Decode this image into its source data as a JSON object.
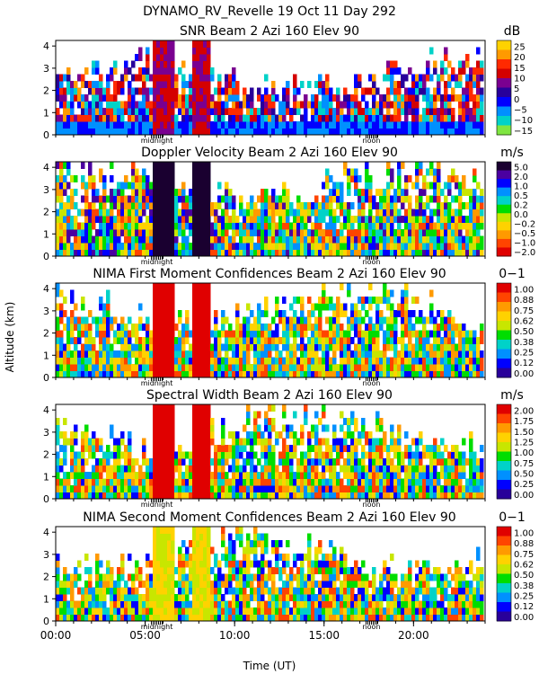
{
  "header": {
    "title": "DYNAMO_RV_Revelle   19 Oct 11 Day 292"
  },
  "chart_data": {
    "type": "heatmap",
    "shared_x": {
      "label": "Time (UT)",
      "range_hours": [
        0,
        24
      ],
      "ticks": [
        {
          "value": 0,
          "label": "00:00"
        },
        {
          "value": 5,
          "label": "05:00"
        },
        {
          "value": 10,
          "label": "10:00"
        },
        {
          "value": 15,
          "label": "15:00"
        },
        {
          "value": 20,
          "label": "20:00"
        }
      ],
      "markers": [
        {
          "value": 5.65,
          "label": "midnight"
        },
        {
          "value": 17.65,
          "label": "noon"
        }
      ]
    },
    "shared_y": {
      "label": "Altitude (km)",
      "range_km": [
        0,
        4.25
      ],
      "ticks": [
        0,
        1,
        2,
        3,
        4
      ]
    },
    "panels": [
      {
        "key": "snr",
        "title": "SNR Beam 2 Azi 160 Elev 90",
        "unit": "dB",
        "colorbar_labels": [
          "25",
          "20",
          "15",
          "10",
          "5",
          "0",
          "−5",
          "−10",
          "−15"
        ],
        "colorbar_colors": [
          "#ffd200",
          "#ff9a00",
          "#ff2a00",
          "#d40000",
          "#7a0090",
          "#28009a",
          "#0000ff",
          "#0090ff",
          "#00d2c8",
          "#7fe640"
        ],
        "background": "#7fe640",
        "sparsity": 0.55,
        "top_km": 3.2
      },
      {
        "key": "doppler",
        "title": "Doppler Velocity Beam 2 Azi 160 Elev 90",
        "unit": "m/s",
        "colorbar_labels": [
          "5.0",
          "2.0",
          "1.0",
          "0.5",
          "0.2",
          "0.0",
          "−0.2",
          "−0.5",
          "−1.0",
          "−2.0"
        ],
        "colorbar_colors": [
          "#1a0030",
          "#4b00a0",
          "#0000ff",
          "#0090ff",
          "#00d2c8",
          "#00dd00",
          "#c8e600",
          "#ffd200",
          "#ff9a00",
          "#ff4400",
          "#e00000"
        ],
        "background": "#ffd200",
        "sparsity": 0.35,
        "top_km": 3.8
      },
      {
        "key": "nima1",
        "title": "NIMA First Moment Confidences Beam 2 Azi 160 Elev 90",
        "unit": "0−1",
        "colorbar_labels": [
          "1.00",
          "0.88",
          "0.75",
          "0.62",
          "0.50",
          "0.38",
          "0.25",
          "0.12",
          "0.00"
        ],
        "colorbar_colors": [
          "#e00000",
          "#ff4400",
          "#ff9a00",
          "#ffd200",
          "#c8e600",
          "#00dd00",
          "#00d2c8",
          "#0090ff",
          "#0000ff",
          "#28009a"
        ],
        "background": "#ff4400",
        "sparsity": 0.4,
        "top_km": 3.8
      },
      {
        "key": "width",
        "title": "Spectral Width Beam 2 Azi 160 Elev 90",
        "unit": "m/s",
        "colorbar_labels": [
          "2.00",
          "1.75",
          "1.50",
          "1.25",
          "1.00",
          "0.75",
          "0.50",
          "0.25",
          "0.00"
        ],
        "colorbar_colors": [
          "#e00000",
          "#ff4400",
          "#ff9a00",
          "#ffd200",
          "#c8e600",
          "#00dd00",
          "#00d2c8",
          "#0090ff",
          "#0000ff",
          "#28009a"
        ],
        "background": "#00d2c8",
        "sparsity": 0.45,
        "top_km": 3.7
      },
      {
        "key": "nima2",
        "title": "NIMA Second Moment Confidences Beam 2 Azi 160 Elev 90",
        "unit": "0−1",
        "colorbar_labels": [
          "1.00",
          "0.88",
          "0.75",
          "0.62",
          "0.50",
          "0.38",
          "0.25",
          "0.12",
          "0.00"
        ],
        "colorbar_colors": [
          "#e00000",
          "#ff4400",
          "#ff9a00",
          "#ffd200",
          "#c8e600",
          "#00dd00",
          "#00d2c8",
          "#0090ff",
          "#0000ff",
          "#28009a"
        ],
        "background": "#00d2c8",
        "sparsity": 0.45,
        "top_km": 3.7
      }
    ]
  }
}
